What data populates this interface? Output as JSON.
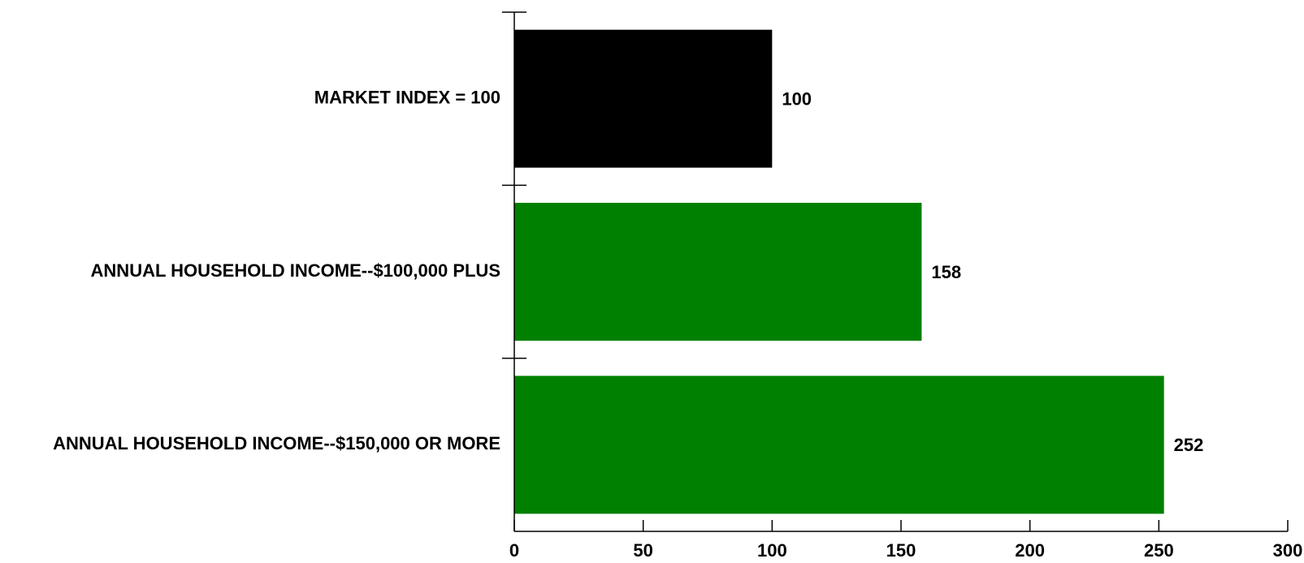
{
  "chart_data": {
    "type": "bar",
    "orientation": "horizontal",
    "title": "",
    "xlabel": "",
    "ylabel": "",
    "categories": [
      "MARKET INDEX = 100",
      "ANNUAL HOUSEHOLD INCOME--$100,000 PLUS",
      "ANNUAL HOUSEHOLD INCOME--$150,000 OR MORE"
    ],
    "values": [
      100,
      158,
      252
    ],
    "value_labels": [
      "100",
      "158",
      "252"
    ],
    "bar_colors": [
      "#000000",
      "#008000",
      "#008000"
    ],
    "xlim": [
      0,
      300
    ],
    "x_ticks": [
      0,
      50,
      100,
      150,
      200,
      250,
      300
    ],
    "x_tick_labels": [
      "0",
      "50",
      "100",
      "150",
      "200",
      "250",
      "300"
    ],
    "grid": false,
    "legend": "none"
  }
}
